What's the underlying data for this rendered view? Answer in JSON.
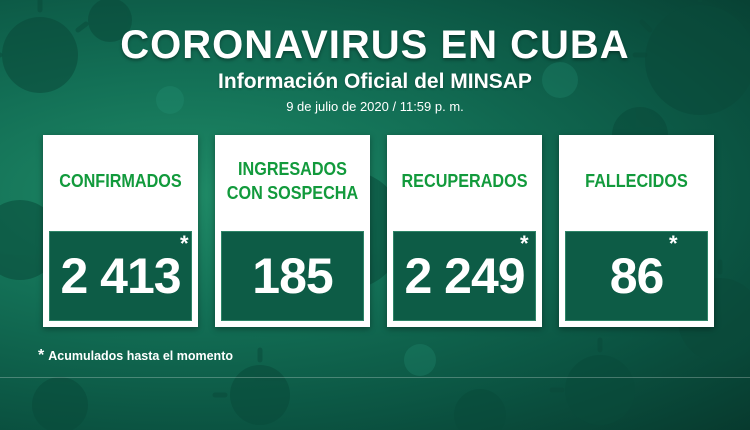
{
  "header": {
    "title": "CORONAVIRUS EN CUBA",
    "subtitle": "Información Oficial del MINSAP",
    "date": "9 de julio de 2020 / 11:59 p. m."
  },
  "cards": [
    {
      "label": "CONFIRMADOS",
      "value": "2 413",
      "asterisk": "*"
    },
    {
      "label": "INGRESADOS\nCON SOSPECHA",
      "value": "185",
      "asterisk": ""
    },
    {
      "label": "RECUPERADOS",
      "value": "2 249",
      "asterisk": "*"
    },
    {
      "label": "FALLECIDOS",
      "value": "86",
      "asterisk": "*"
    }
  ],
  "footnote": {
    "star": "*",
    "text": "Acumulados hasta el momento"
  },
  "colors": {
    "background": "#0b5442",
    "label_green": "#129a3c",
    "value_box": "#0d5c46"
  }
}
